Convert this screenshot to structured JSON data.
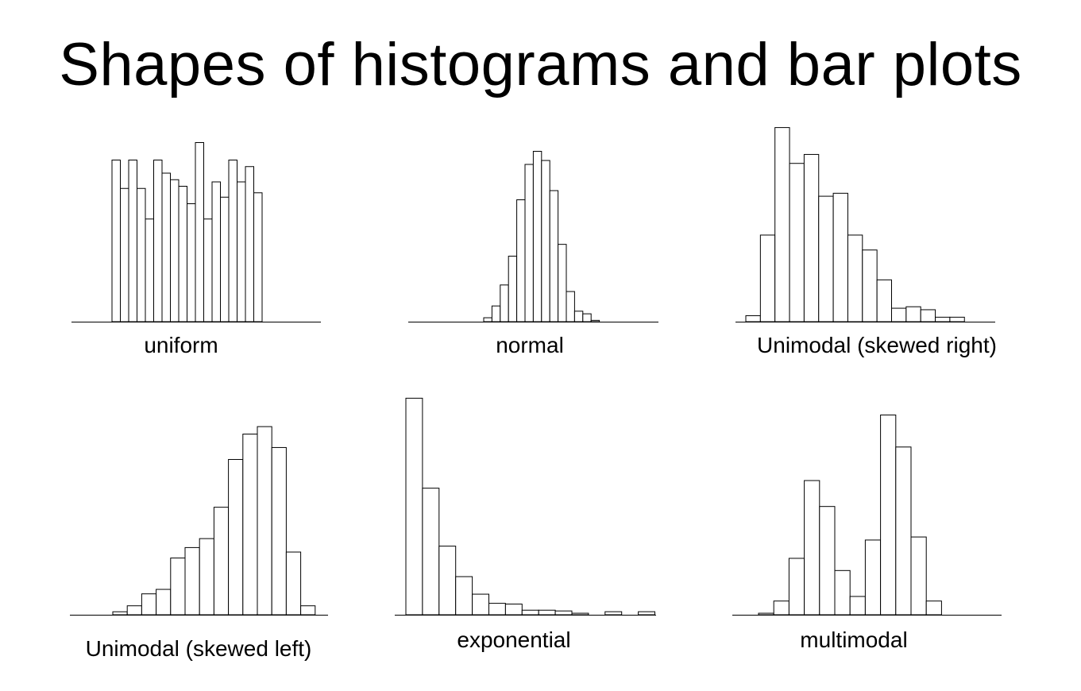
{
  "slide": {
    "title": "Shapes of histograms and bar plots"
  },
  "chart_data": [
    {
      "type": "bar",
      "title": "uniform",
      "values": [
        7.4,
        6.1,
        7.4,
        6.1,
        4.7,
        7.4,
        6.8,
        6.5,
        6.2,
        5.4,
        8.2,
        4.7,
        6.4,
        5.7,
        7.4,
        6.4,
        7.1,
        5.9
      ]
    },
    {
      "type": "bar",
      "title": "normal",
      "values": [
        0.3,
        1.2,
        2.8,
        5.0,
        9.3,
        12.0,
        13.0,
        12.3,
        10.0,
        5.9,
        2.3,
        0.8,
        0.6,
        0.1
      ]
    },
    {
      "type": "bar",
      "title": "Unimodal (skewed right)",
      "values": [
        0.4,
        5.8,
        13.0,
        10.6,
        11.2,
        8.4,
        8.6,
        5.8,
        4.8,
        2.8,
        0.9,
        1.0,
        0.8,
        0.3,
        0.3
      ]
    },
    {
      "type": "bar",
      "title": "Unimodal (skewed left)",
      "values": [
        0.2,
        0.6,
        1.4,
        1.7,
        3.8,
        4.5,
        5.1,
        7.2,
        10.4,
        12.1,
        12.6,
        11.2,
        4.2,
        0.6
      ]
    },
    {
      "type": "bar",
      "title": "exponential",
      "values": [
        14.2,
        8.3,
        4.5,
        2.5,
        1.35,
        0.75,
        0.7,
        0.3,
        0.3,
        0.25,
        0.1,
        0.0,
        0.2,
        0.0,
        0.2
      ]
    },
    {
      "type": "bar",
      "title": "multimodal",
      "values": [
        0.1,
        0.9,
        3.7,
        8.8,
        7.1,
        2.9,
        1.2,
        4.9,
        13.1,
        11.0,
        5.1,
        0.9
      ]
    }
  ]
}
